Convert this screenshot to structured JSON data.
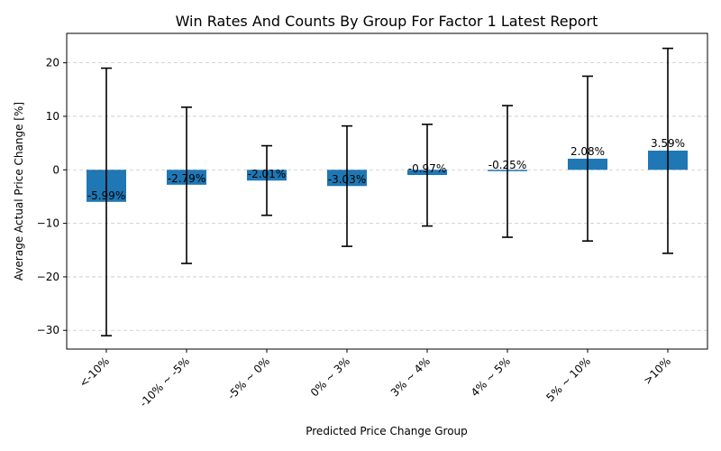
{
  "chart_data": {
    "type": "bar",
    "title": "Win Rates And Counts By Group For Factor 1 Latest Report",
    "xlabel": "Predicted Price Change Group",
    "ylabel": "Average Actual Price Change [%]",
    "categories": [
      "<-10%",
      "-10% ~ -5%",
      "-5% ~ 0%",
      "0% ~ 3%",
      "3% ~ 4%",
      "4% ~ 5%",
      "5% ~ 10%",
      ">10%"
    ],
    "values": [
      -5.99,
      -2.79,
      -2.01,
      -3.03,
      -0.97,
      -0.25,
      2.08,
      3.59
    ],
    "data_labels": [
      "-5.99%",
      "-2.79%",
      "-2.01%",
      "-3.03%",
      "-0.97%",
      "-0.25%",
      "2.08%",
      "3.59%"
    ],
    "error_low": [
      -31.0,
      -17.5,
      -8.5,
      -14.3,
      -10.5,
      -12.6,
      -13.3,
      -15.6
    ],
    "error_high": [
      19.0,
      11.7,
      4.5,
      8.2,
      8.5,
      12.0,
      17.5,
      22.7
    ],
    "ylim": [
      -33.5,
      25.5
    ],
    "yticks": [
      -30,
      -20,
      -10,
      0,
      10,
      20
    ],
    "ytick_labels": [
      "−30",
      "−20",
      "−10",
      "0",
      "10",
      "20"
    ],
    "grid": "y-dashed",
    "colors": {
      "bar": "#1f77b4",
      "error": "#000000"
    }
  }
}
